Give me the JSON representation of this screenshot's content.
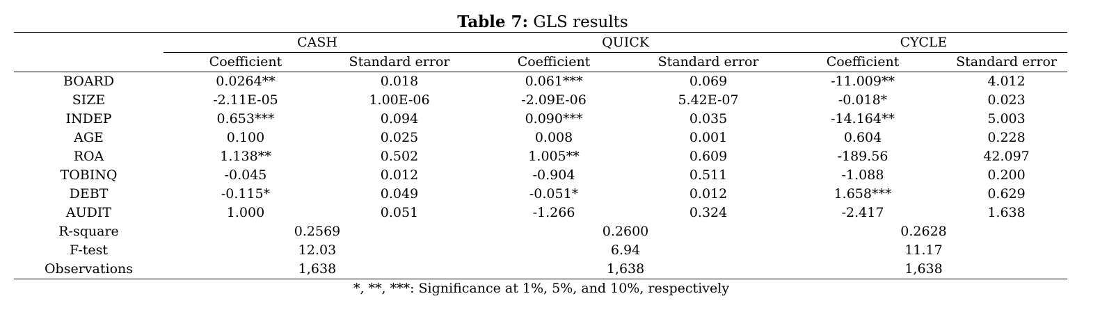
{
  "caption": {
    "label": "Table 7:",
    "title": "GLS results"
  },
  "groups": [
    "CASH",
    "QUICK",
    "CYCLE"
  ],
  "subheaders": [
    "Coefficient",
    "Standard error",
    "Coefficient",
    "Standard error",
    "Coefficient",
    "Standard error"
  ],
  "rows": [
    {
      "label": "BOARD",
      "cells": [
        "0.0264**",
        "0.018",
        "0.061***",
        "0.069",
        "-11.009**",
        "4.012"
      ]
    },
    {
      "label": "SIZE",
      "cells": [
        "-2.11E-05",
        "1.00E-06",
        "-2.09E-06",
        "5.42E-07",
        "-0.018*",
        "0.023"
      ]
    },
    {
      "label": "INDEP",
      "cells": [
        "0.653***",
        "0.094",
        "0.090***",
        "0.035",
        "-14.164**",
        "5.003"
      ]
    },
    {
      "label": "AGE",
      "cells": [
        "0.100",
        "0.025",
        "0.008",
        "0.001",
        "0.604",
        "0.228"
      ]
    },
    {
      "label": "ROA",
      "cells": [
        "1.138**",
        "0.502",
        "1.005**",
        "0.609",
        "-189.56",
        "42.097"
      ]
    },
    {
      "label": "TOBINQ",
      "cells": [
        "-0.045",
        "0.012",
        "-0.904",
        "0.511",
        "-1.088",
        "0.200"
      ]
    },
    {
      "label": "DEBT",
      "cells": [
        "-0.115*",
        "0.049",
        "-0.051*",
        "0.012",
        "1.658***",
        "0.629"
      ]
    },
    {
      "label": "AUDIT",
      "cells": [
        "1.000",
        "0.051",
        "-1.266",
        "0.324",
        "-2.417",
        "1.638"
      ]
    }
  ],
  "summary": [
    {
      "label": "R-square",
      "values": [
        "0.2569",
        "0.2600",
        "0.2628"
      ]
    },
    {
      "label": "F-test",
      "values": [
        "12.03",
        "6.94",
        "11.17"
      ]
    },
    {
      "label": "Observations",
      "values": [
        "1,638",
        "1,638",
        "1,638"
      ]
    }
  ],
  "note": "*, **, ***: Significance at 1%, 5%, and 10%, respectively"
}
